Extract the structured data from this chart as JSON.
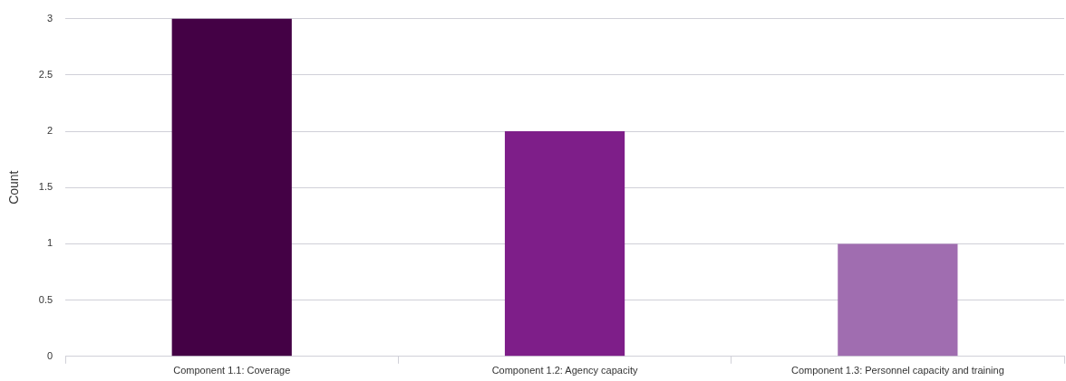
{
  "chart_data": {
    "type": "bar",
    "ylabel": "Count",
    "categories": [
      "Component 1.1: Coverage",
      "Component 1.2: Agency capacity",
      "Component 1.3: Personnel capacity and training"
    ],
    "values": [
      3,
      2,
      1
    ],
    "colors": [
      "#440145",
      "#7e1e89",
      "#a06db0"
    ],
    "ylim": [
      0,
      3
    ],
    "yticks": [
      0,
      0.5,
      1,
      1.5,
      2,
      2.5,
      3
    ],
    "grid": "y"
  }
}
